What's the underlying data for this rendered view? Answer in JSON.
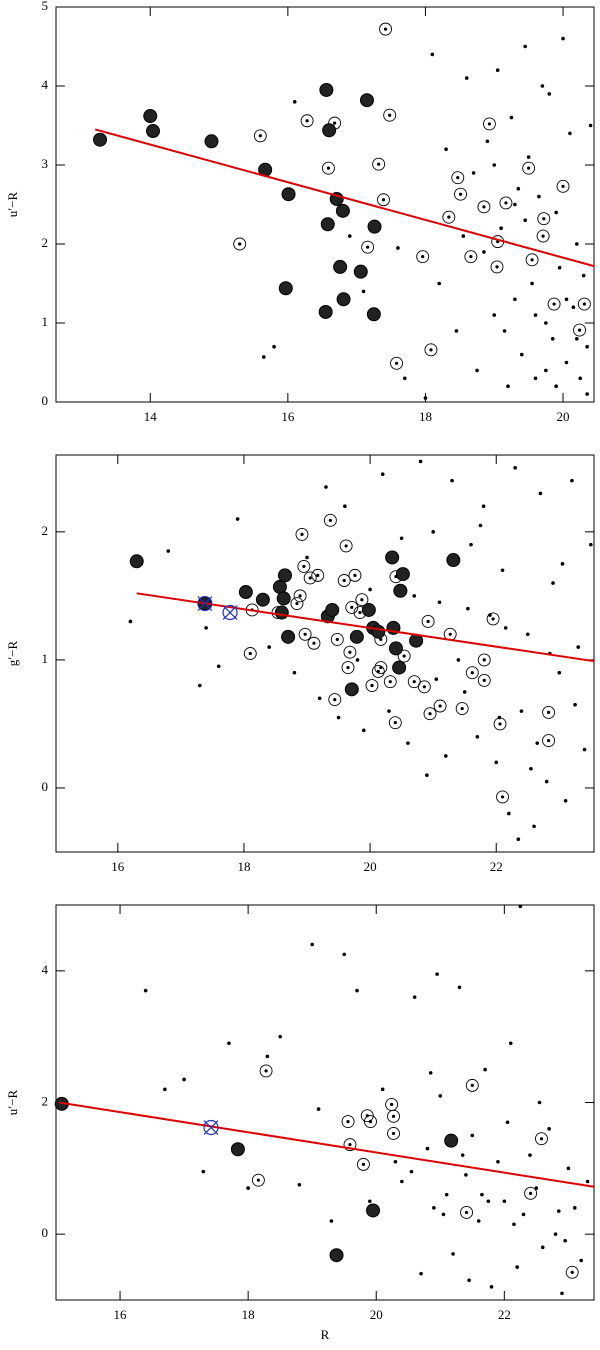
{
  "chart_data": [
    {
      "type": "scatter",
      "ylabel": "u′−R",
      "xlim": [
        12.63,
        20.45
      ],
      "ylim": [
        0,
        5
      ],
      "xticks": [
        14,
        16,
        18,
        20
      ],
      "yticks": [
        0,
        1,
        2,
        3,
        4,
        5
      ],
      "series": [
        {
          "marker": "small",
          "color": "#000000",
          "x": [
            15.65,
            15.8,
            16.1,
            16.9,
            17.1,
            17.6,
            17.7,
            18.0,
            18.1,
            18.2,
            18.3,
            18.45,
            18.6,
            18.7,
            18.75,
            18.9,
            19.0,
            19.05,
            19.1,
            19.2,
            19.25,
            19.3,
            19.35,
            19.4,
            19.45,
            19.5,
            19.55,
            19.6,
            19.65,
            19.7,
            19.75,
            19.8,
            19.85,
            19.9,
            19.95,
            20.0,
            20.05,
            20.1,
            20.15,
            20.2,
            20.25,
            20.3,
            20.35,
            20.4,
            18.55,
            18.85,
            19.15,
            19.45,
            19.75,
            20.05,
            20.35,
            19.0,
            19.3,
            19.6,
            19.9,
            20.2
          ],
          "values": [
            0.57,
            0.7,
            3.8,
            2.1,
            1.4,
            1.95,
            0.3,
            0.05,
            4.4,
            1.5,
            3.2,
            0.9,
            4.1,
            2.9,
            0.4,
            3.3,
            1.1,
            4.2,
            2.2,
            0.2,
            3.6,
            1.3,
            2.7,
            0.6,
            4.5,
            3.1,
            1.5,
            0.3,
            2.6,
            4.0,
            1.0,
            3.9,
            0.8,
            2.4,
            1.7,
            4.6,
            0.5,
            3.4,
            1.2,
            2.0,
            0.3,
            1.6,
            0.1,
            3.5,
            2.1,
            1.9,
            0.9,
            2.3,
            0.4,
            1.3,
            0.7,
            3.0,
            2.5,
            1.1,
            0.2,
            0.8
          ]
        },
        {
          "marker": "circled",
          "color": "#000000",
          "x": [
            15.6,
            15.3,
            16.28,
            16.59,
            16.68,
            17.32,
            17.39,
            17.16,
            17.42,
            17.48,
            17.58,
            17.96,
            18.08,
            18.34,
            18.47,
            18.51,
            18.66,
            18.93,
            18.85,
            19.04,
            19.05,
            19.17,
            19.5,
            19.55,
            19.72,
            19.71,
            19.87,
            20.0,
            20.24,
            20.31
          ],
          "values": [
            3.37,
            2.0,
            3.56,
            2.96,
            3.53,
            3.01,
            2.56,
            1.96,
            4.72,
            3.63,
            0.49,
            1.84,
            0.66,
            2.34,
            2.84,
            2.63,
            1.84,
            3.52,
            2.47,
            1.71,
            2.03,
            2.52,
            2.96,
            1.8,
            2.32,
            2.1,
            1.24,
            2.73,
            0.91,
            1.24
          ]
        },
        {
          "marker": "filled",
          "color": "#222222",
          "x": [
            13.27,
            14.0,
            14.04,
            14.89,
            15.67,
            16.01,
            15.97,
            16.56,
            16.6,
            16.71,
            16.58,
            16.8,
            16.76,
            16.81,
            16.55,
            17.06,
            17.15,
            17.26,
            17.25
          ],
          "values": [
            3.32,
            3.62,
            3.43,
            3.3,
            2.94,
            2.63,
            1.44,
            3.95,
            3.44,
            2.57,
            2.25,
            2.42,
            1.71,
            1.3,
            1.14,
            1.65,
            3.82,
            2.22,
            1.11
          ]
        }
      ],
      "lines": [
        {
          "color": "#dd0000",
          "x": [
            13.2,
            20.45
          ],
          "values": [
            3.45,
            1.72
          ]
        }
      ]
    },
    {
      "type": "scatter",
      "ylabel": "g′−R",
      "xlim": [
        15.02,
        23.55
      ],
      "ylim": [
        -0.5,
        2.6
      ],
      "xticks": [
        16,
        18,
        20,
        22
      ],
      "yticks": [
        0,
        1,
        2
      ],
      "series": [
        {
          "marker": "small",
          "color": "#000000",
          "x": [
            16.2,
            16.8,
            17.3,
            17.4,
            17.6,
            17.9,
            18.4,
            18.8,
            19.0,
            19.2,
            19.3,
            19.5,
            19.6,
            19.8,
            19.9,
            20.0,
            20.2,
            20.3,
            20.5,
            20.6,
            20.7,
            20.8,
            20.9,
            21.0,
            21.1,
            21.2,
            21.3,
            21.4,
            21.5,
            21.6,
            21.7,
            21.8,
            21.9,
            22.0,
            22.1,
            22.2,
            22.3,
            22.4,
            22.5,
            22.6,
            22.7,
            22.8,
            22.9,
            23.0,
            23.1,
            23.2,
            23.3,
            23.4,
            23.5,
            21.05,
            21.55,
            22.05,
            22.55,
            23.05,
            22.35,
            22.85,
            23.25,
            21.75,
            22.15,
            22.65
          ],
          "values": [
            1.3,
            1.85,
            0.8,
            1.25,
            0.95,
            2.1,
            1.1,
            0.9,
            1.8,
            0.7,
            2.35,
            0.55,
            2.2,
            1.0,
            0.45,
            1.55,
            2.45,
            0.6,
            1.95,
            0.35,
            1.5,
            2.55,
            0.1,
            2.0,
            1.45,
            0.25,
            2.4,
            1.0,
            0.75,
            1.9,
            0.4,
            2.2,
            1.35,
            0.2,
            1.7,
            -0.2,
            2.5,
            0.6,
            1.2,
            -0.3,
            2.3,
            0.05,
            1.6,
            0.9,
            -0.1,
            2.4,
            1.1,
            0.3,
            1.9,
            0.85,
            1.4,
            0.55,
            0.15,
            1.75,
            -0.4,
            1.05,
            0.65,
            2.05,
            1.25,
            0.35
          ]
        },
        {
          "marker": "circled",
          "color": "#000000",
          "x": [
            18.1,
            18.13,
            18.54,
            18.84,
            18.89,
            18.95,
            18.92,
            19.05,
            18.97,
            19.11,
            19.17,
            19.37,
            19.44,
            19.48,
            19.59,
            19.62,
            19.65,
            19.68,
            19.71,
            19.76,
            19.84,
            19.87,
            20.03,
            20.13,
            20.17,
            20.17,
            20.32,
            20.4,
            20.41,
            20.54,
            20.7,
            20.86,
            20.95,
            20.92,
            21.11,
            21.27,
            21.46,
            21.62,
            21.81,
            21.81,
            21.95,
            22.06,
            22.1,
            22.83,
            22.83
          ],
          "values": [
            1.05,
            1.39,
            1.37,
            1.44,
            1.5,
            1.73,
            1.98,
            1.64,
            1.2,
            1.13,
            1.66,
            2.09,
            0.69,
            1.16,
            1.62,
            1.89,
            0.94,
            1.06,
            1.41,
            1.66,
            1.37,
            1.47,
            0.8,
            0.91,
            1.16,
            0.94,
            0.83,
            0.51,
            1.65,
            1.03,
            0.83,
            0.79,
            0.58,
            1.3,
            0.64,
            1.2,
            0.62,
            0.9,
            1.0,
            0.84,
            1.32,
            0.5,
            -0.07,
            0.59,
            0.37
          ]
        },
        {
          "marker": "filled",
          "color": "#222222",
          "x": [
            16.3,
            17.38,
            18.03,
            18.3,
            18.57,
            18.65,
            18.63,
            18.6,
            18.7,
            19.33,
            19.4,
            19.71,
            19.79,
            19.98,
            20.05,
            20.13,
            20.35,
            20.37,
            20.41,
            20.46,
            20.48,
            20.52,
            20.73,
            21.32
          ],
          "values": [
            1.77,
            1.44,
            1.53,
            1.47,
            1.57,
            1.66,
            1.48,
            1.37,
            1.18,
            1.34,
            1.39,
            0.77,
            1.18,
            1.39,
            1.25,
            1.22,
            1.8,
            1.25,
            1.09,
            0.94,
            1.54,
            1.67,
            1.15,
            1.78
          ]
        },
        {
          "marker": "cross",
          "color": "#2233bb",
          "x": [
            17.38,
            17.78
          ],
          "values": [
            1.44,
            1.37
          ]
        }
      ],
      "lines": [
        {
          "color": "#dd0000",
          "x": [
            16.3,
            23.55
          ],
          "values": [
            1.52,
            0.99
          ]
        }
      ]
    },
    {
      "type": "scatter",
      "ylabel": "u′−R",
      "xlabel": "R",
      "xlim": [
        15.0,
        23.4
      ],
      "ylim": [
        -1,
        5
      ],
      "xticks": [
        16,
        18,
        20,
        22
      ],
      "yticks": [
        0,
        2,
        4
      ],
      "series": [
        {
          "marker": "small",
          "color": "#000000",
          "x": [
            16.4,
            16.7,
            17.0,
            17.3,
            17.7,
            18.0,
            18.3,
            18.5,
            18.8,
            19.0,
            19.1,
            19.3,
            19.5,
            19.7,
            19.9,
            20.1,
            20.3,
            20.4,
            20.6,
            20.7,
            20.8,
            20.9,
            21.0,
            21.1,
            21.2,
            21.3,
            21.4,
            21.5,
            21.6,
            21.7,
            21.8,
            21.9,
            22.0,
            22.1,
            22.2,
            22.3,
            22.4,
            22.5,
            22.6,
            22.7,
            22.8,
            22.9,
            23.0,
            23.1,
            23.2,
            23.3,
            20.55,
            20.95,
            21.35,
            21.75,
            22.15,
            22.55,
            22.95,
            21.05,
            21.65,
            22.25,
            22.85,
            20.85,
            21.45,
            22.05
          ],
          "values": [
            3.7,
            2.2,
            2.35,
            0.95,
            2.9,
            0.7,
            2.7,
            3.0,
            0.75,
            4.4,
            1.9,
            0.2,
            4.25,
            3.7,
            0.5,
            2.2,
            1.1,
            0.8,
            3.6,
            -0.6,
            1.3,
            0.4,
            2.1,
            0.6,
            -0.3,
            3.75,
            0.9,
            1.5,
            0.2,
            2.5,
            -0.8,
            1.1,
            0.5,
            2.9,
            -0.5,
            0.3,
            1.2,
            0.7,
            -0.2,
            1.6,
            0.0,
            -0.9,
            1.0,
            0.4,
            -0.4,
            0.8,
            0.95,
            3.95,
            1.2,
            0.5,
            0.15,
            2.0,
            -0.1,
            0.3,
            0.6,
            4.98,
            0.35,
            2.45,
            -0.7,
            1.7
          ]
        },
        {
          "marker": "circled",
          "color": "#000000",
          "x": [
            18.28,
            18.16,
            19.56,
            19.91,
            19.59,
            19.8,
            20.27,
            20.27,
            20.24,
            19.86,
            21.5,
            21.41,
            22.58,
            22.41,
            23.06
          ],
          "values": [
            2.48,
            0.82,
            1.71,
            1.71,
            1.36,
            1.06,
            1.79,
            1.53,
            1.97,
            1.8,
            2.26,
            0.33,
            1.45,
            0.62,
            -0.58
          ]
        },
        {
          "marker": "filled",
          "color": "#222222",
          "x": [
            15.09,
            17.84,
            19.38,
            19.95,
            21.17
          ],
          "values": [
            1.98,
            1.29,
            -0.32,
            0.36,
            1.42
          ]
        },
        {
          "marker": "cross",
          "color": "#2233bb",
          "x": [
            17.42
          ],
          "values": [
            1.62
          ]
        }
      ],
      "lines": [
        {
          "color": "#dd0000",
          "x": [
            15.05,
            23.4
          ],
          "values": [
            2.0,
            0.72
          ]
        }
      ]
    }
  ]
}
